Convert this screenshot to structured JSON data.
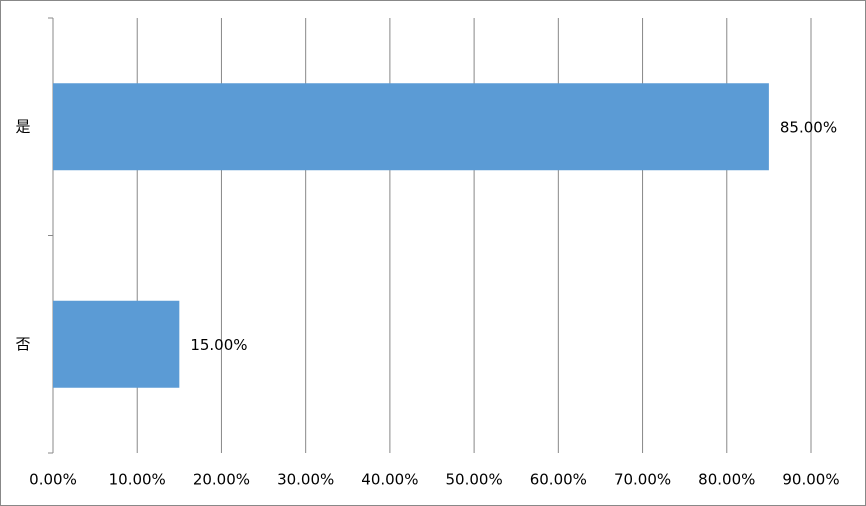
{
  "chart_data": {
    "type": "bar",
    "orientation": "horizontal",
    "categories": [
      "是",
      "否"
    ],
    "values": [
      85,
      15
    ],
    "value_labels": [
      "85.00%",
      "15.00%"
    ],
    "color": "#5b9bd5",
    "xlim": [
      0,
      90
    ],
    "xticks": [
      {
        "value": 0,
        "label": "0.00%"
      },
      {
        "value": 10,
        "label": "10.00%"
      },
      {
        "value": 20,
        "label": "20.00%"
      },
      {
        "value": 30,
        "label": "30.00%"
      },
      {
        "value": 40,
        "label": "40.00%"
      },
      {
        "value": 50,
        "label": "50.00%"
      },
      {
        "value": 60,
        "label": "60.00%"
      },
      {
        "value": 70,
        "label": "70.00%"
      },
      {
        "value": 80,
        "label": "80.00%"
      },
      {
        "value": 90,
        "label": "90.00%"
      }
    ],
    "grid": true
  }
}
